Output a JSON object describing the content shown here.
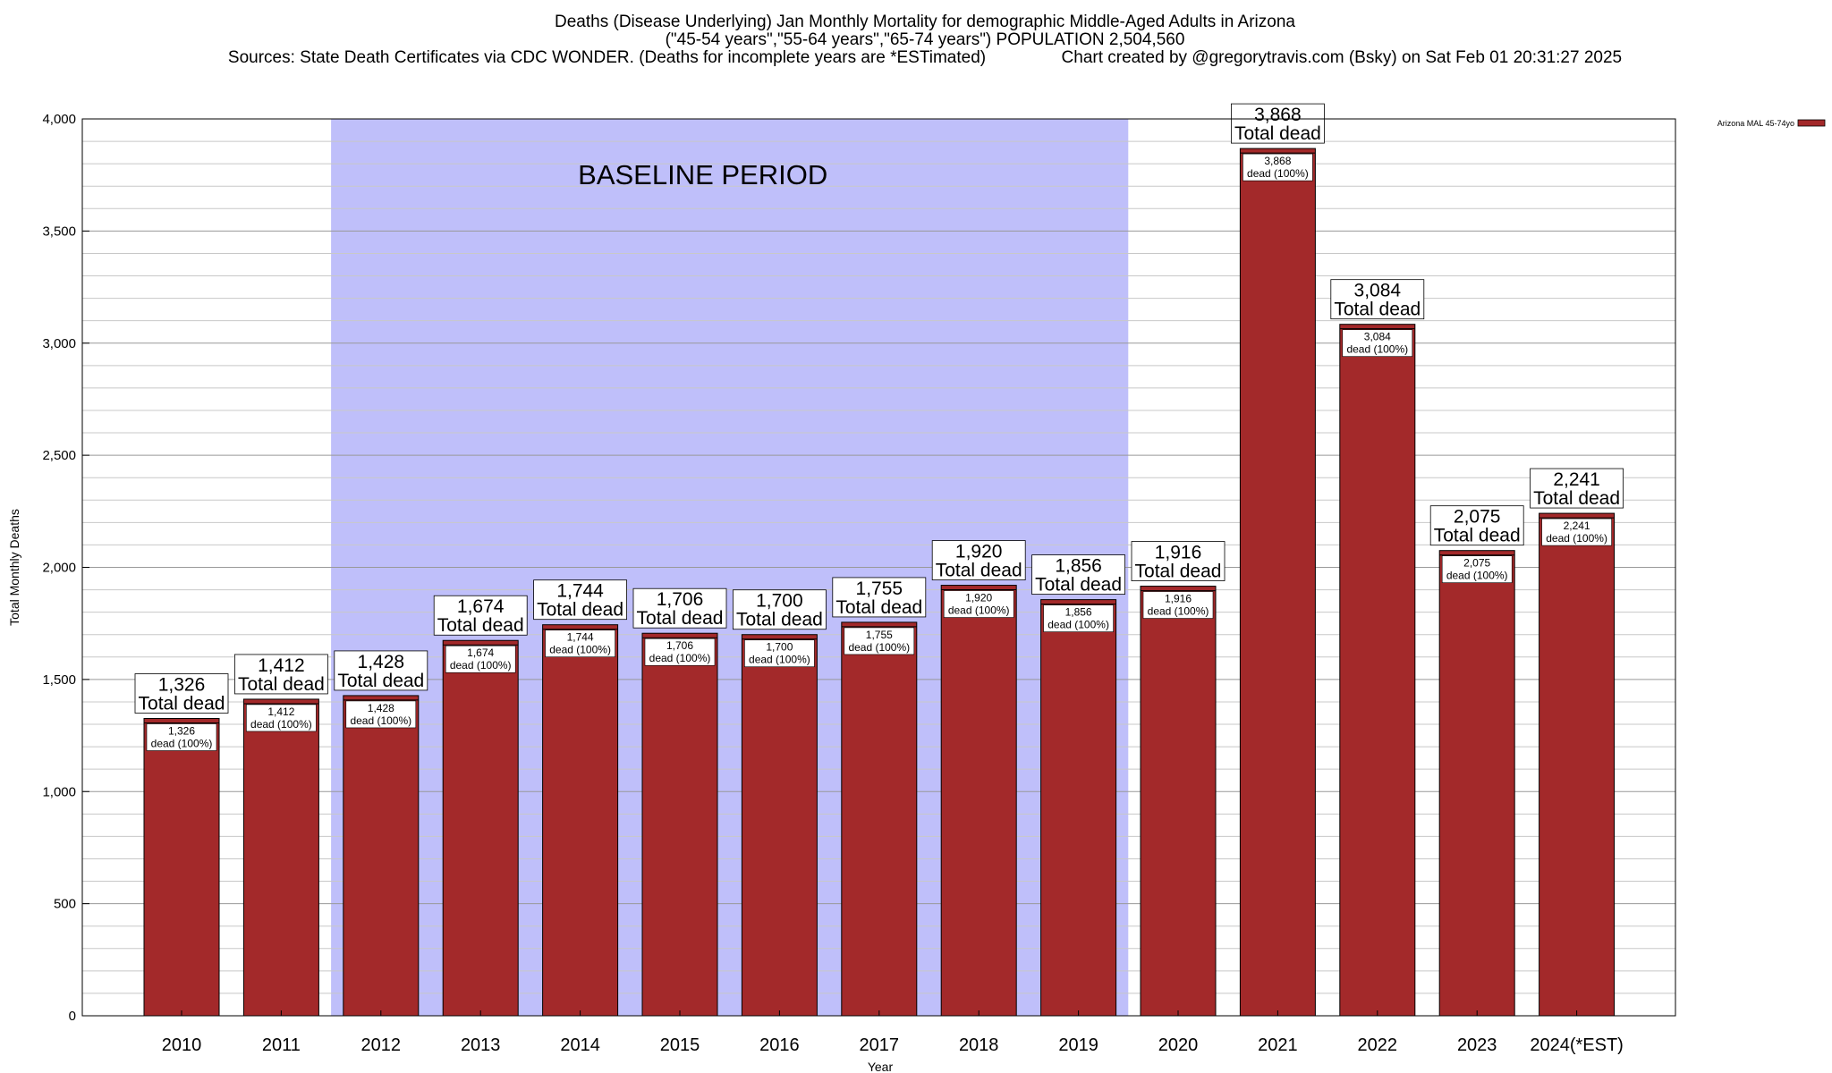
{
  "title": {
    "line1": "Deaths (Disease Underlying) Jan Monthly Mortality for demographic Middle-Aged Adults in Arizona",
    "line2": "(\"45-54 years\",\"55-64 years\",\"65-74 years\") POPULATION 2,504,560",
    "line3": "Sources: State Death Certificates via CDC WONDER. (Deaths for incomplete years are *ESTimated)                Chart created by @gregorytravis.com (Bsky) on Sat Feb 01 20:31:27 2025"
  },
  "chart_data": {
    "type": "bar",
    "xlabel": "Year",
    "ylabel": "Total Monthly Deaths",
    "ylim": [
      0,
      4000
    ],
    "yticks": [
      0,
      500,
      1000,
      1500,
      2000,
      2500,
      3000,
      3500,
      4000
    ],
    "ytick_labels": [
      "0",
      "500",
      "1,000",
      "1,500",
      "2,000",
      "2,500",
      "3,000",
      "3,500",
      "4,000"
    ],
    "categories": [
      "2010",
      "2011",
      "2012",
      "2013",
      "2014",
      "2015",
      "2016",
      "2017",
      "2018",
      "2019",
      "2020",
      "2021",
      "2022",
      "2023",
      "2024(*EST)"
    ],
    "series": [
      {
        "name": "Arizona MAL 45-74yo",
        "color": "#a3292a",
        "values": [
          1326,
          1412,
          1428,
          1674,
          1744,
          1706,
          1700,
          1755,
          1920,
          1856,
          1916,
          3868,
          3084,
          2075,
          2241
        ]
      }
    ],
    "value_labels": [
      "1,326",
      "1,412",
      "1,428",
      "1,674",
      "1,744",
      "1,706",
      "1,700",
      "1,755",
      "1,920",
      "1,856",
      "1,916",
      "3,868",
      "3,084",
      "2,075",
      "2,241"
    ],
    "total_label": "Total dead",
    "pct_label": "dead (100%)",
    "baseline": {
      "label": "BASELINE PERIOD",
      "start_category": "2012",
      "end_category": "2019",
      "color": "#bfbffa"
    },
    "legend": "Arizona MAL 45-74yo",
    "grid": true
  }
}
